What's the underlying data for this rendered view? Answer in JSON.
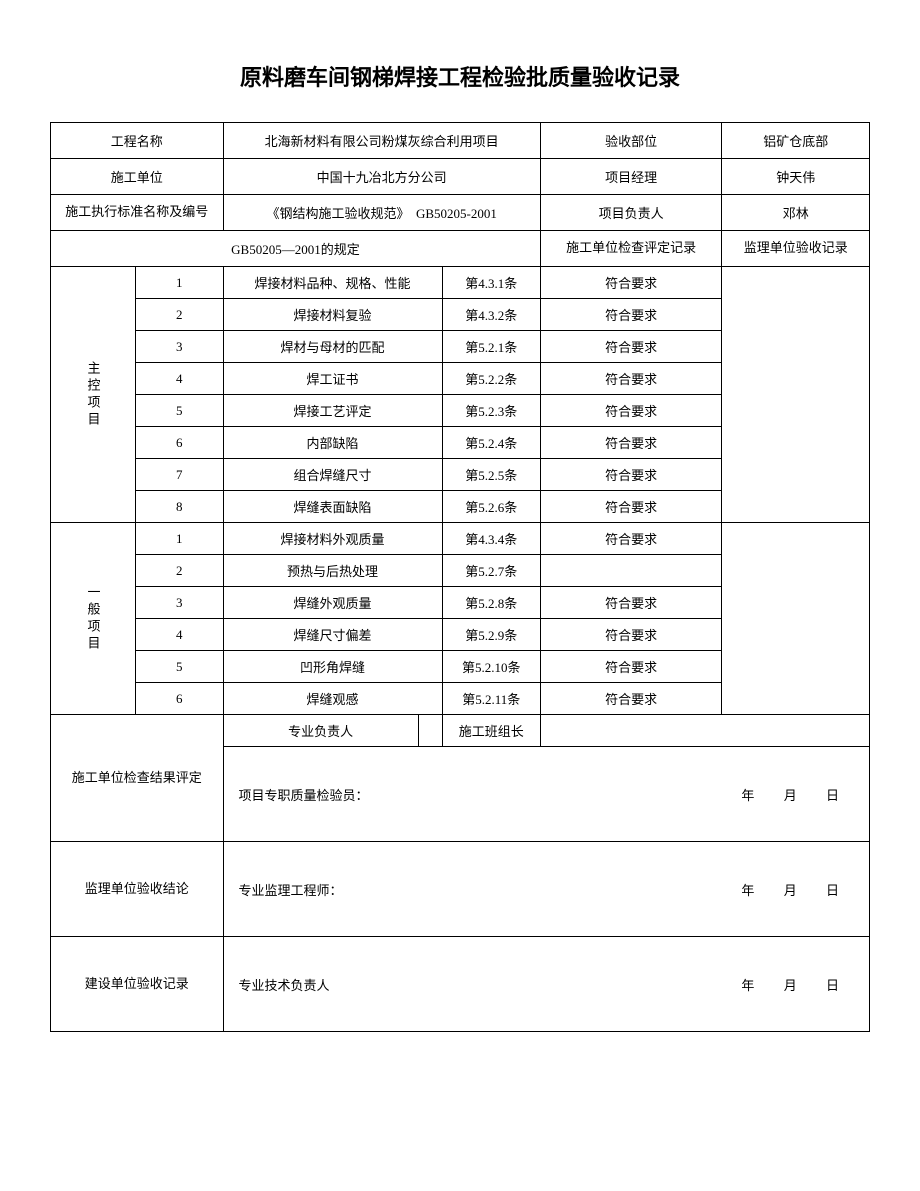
{
  "title": "原料磨车间钢梯焊接工程检验批质量验收记录",
  "header": {
    "project_name_label": "工程名称",
    "project_name": "北海新材料有限公司粉煤灰综合利用项目",
    "acceptance_part_label": "验收部位",
    "acceptance_part": "铝矿仓底部",
    "construction_unit_label": "施工单位",
    "construction_unit": "中国十九冶北方分公司",
    "project_manager_label": "项目经理",
    "project_manager": "钟天伟",
    "standard_label": "施工执行标准名称及编号",
    "standard": "《钢结构施工验收规范》　GB50205-2001",
    "project_leader_label": "项目负责人",
    "project_leader": "邓林",
    "regulation_label": "GB50205—2001的规定",
    "check_record_label": "施工单位检查评定记录",
    "supervision_record_label": "监理单位验收记录"
  },
  "main_items": {
    "label": "主控项目",
    "rows": [
      {
        "n": "1",
        "name": "焊接材料品种、规格、性能",
        "clause": "第4.3.1条",
        "result": "符合要求"
      },
      {
        "n": "2",
        "name": "焊接材料复验",
        "clause": "第4.3.2条",
        "result": "符合要求"
      },
      {
        "n": "3",
        "name": "焊材与母材的匹配",
        "clause": "第5.2.1条",
        "result": "符合要求"
      },
      {
        "n": "4",
        "name": "焊工证书",
        "clause": "第5.2.2条",
        "result": "符合要求"
      },
      {
        "n": "5",
        "name": "焊接工艺评定",
        "clause": "第5.2.3条",
        "result": "符合要求"
      },
      {
        "n": "6",
        "name": "内部缺陷",
        "clause": "第5.2.4条",
        "result": "符合要求"
      },
      {
        "n": "7",
        "name": "组合焊缝尺寸",
        "clause": "第5.2.5条",
        "result": "符合要求"
      },
      {
        "n": "8",
        "name": "焊缝表面缺陷",
        "clause": "第5.2.6条",
        "result": "符合要求"
      }
    ]
  },
  "general_items": {
    "label": "一般项目",
    "rows": [
      {
        "n": "1",
        "name": "焊接材料外观质量",
        "clause": "第4.3.4条",
        "result": "符合要求"
      },
      {
        "n": "2",
        "name": "预热与后热处理",
        "clause": "第5.2.7条",
        "result": ""
      },
      {
        "n": "3",
        "name": "焊缝外观质量",
        "clause": "第5.2.8条",
        "result": "符合要求"
      },
      {
        "n": "4",
        "name": "焊缝尺寸偏差",
        "clause": "第5.2.9条",
        "result": "符合要求"
      },
      {
        "n": "5",
        "name": "凹形角焊缝",
        "clause": "第5.2.10条",
        "result": "符合要求"
      },
      {
        "n": "6",
        "name": "焊缝观感",
        "clause": "第5.2.11条",
        "result": "符合要求"
      }
    ]
  },
  "signatures": {
    "prof_leader_label": "专业负责人",
    "team_leader_label": "施工班组长",
    "construction_check_label": "施工单位检查结果评定",
    "quality_inspector": "项目专职质量检验员：",
    "supervision_conclusion_label": "监理单位验收结论",
    "supervision_engineer": "专业监理工程师：",
    "owner_record_label": "建设单位验收记录",
    "tech_leader": "专业技术负责人",
    "year": "年",
    "month": "月",
    "day": "日"
  }
}
